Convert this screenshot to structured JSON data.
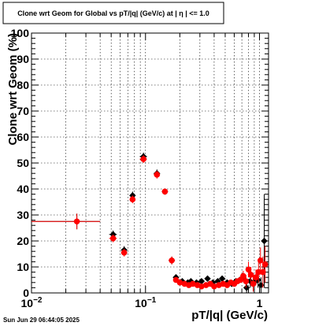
{
  "title": "Clone wrt Geom for Global vs pT/|q| (GeV/c) at |  η  | <= 1.0",
  "timestamp": "Sun Jun 29 06:44:05 2025",
  "chart_data": {
    "type": "scatter",
    "xlabel": "pT/|q| (GeV/c)",
    "ylabel": "Clone wrt Geom (%)",
    "xscale": "log",
    "xlim": [
      0.01,
      1.2
    ],
    "ylim": [
      0,
      100
    ],
    "grid": true,
    "legend": "none",
    "x_ticks": [
      {
        "value": 0.01,
        "base": "10",
        "exp": "−2"
      },
      {
        "value": 0.1,
        "base": "10",
        "exp": "−1"
      },
      {
        "value": 1,
        "base": "1",
        "exp": ""
      }
    ],
    "y_ticks": [
      0,
      10,
      20,
      30,
      40,
      50,
      60,
      70,
      80,
      90,
      100
    ],
    "colors": {
      "series_a": "#000000",
      "series_b": "#ff0000"
    },
    "series": [
      {
        "marker": "diamond",
        "color": "#000000",
        "points": [
          {
            "x": 0.025,
            "y": 27.5,
            "xlo": 0.01,
            "xhi": 0.04,
            "yerr": 3
          },
          {
            "x": 0.052,
            "y": 22.5,
            "xerr": 0.004,
            "yerr": 1.5
          },
          {
            "x": 0.065,
            "y": 16.5,
            "xerr": 0.004,
            "yerr": 1.5
          },
          {
            "x": 0.077,
            "y": 37.5,
            "xerr": 0.003,
            "yerr": 1.5
          },
          {
            "x": 0.096,
            "y": 52.5,
            "xerr": 0.007,
            "yerr": 1.5
          },
          {
            "x": 0.126,
            "y": 46.0,
            "xerr": 0.008,
            "yerr": 1.5
          },
          {
            "x": 0.148,
            "y": 39.0,
            "xerr": 0.004,
            "yerr": 1.0
          },
          {
            "x": 0.17,
            "y": 12.5,
            "xerr": 0.005,
            "yerr": 1.5
          },
          {
            "x": 0.185,
            "y": 6.0
          },
          {
            "x": 0.21,
            "y": 4.5
          },
          {
            "x": 0.235,
            "y": 4.0
          },
          {
            "x": 0.25,
            "y": 4.5
          },
          {
            "x": 0.28,
            "y": 4.0
          },
          {
            "x": 0.31,
            "y": 4.5
          },
          {
            "x": 0.35,
            "y": 5.5
          },
          {
            "x": 0.39,
            "y": 4.0
          },
          {
            "x": 0.43,
            "y": 4.5
          },
          {
            "x": 0.47,
            "y": 5.5
          },
          {
            "x": 0.52,
            "y": 4.0
          },
          {
            "x": 0.57,
            "y": 3.5
          },
          {
            "x": 0.62,
            "y": 4.5
          },
          {
            "x": 0.67,
            "y": 5.0
          },
          {
            "x": 0.72,
            "y": 6.0
          },
          {
            "x": 0.77,
            "y": 2.0,
            "yerr": 2.5
          },
          {
            "x": 0.83,
            "y": 4.5,
            "yerr": 2.5
          },
          {
            "x": 0.9,
            "y": 4.0,
            "yerr": 3
          },
          {
            "x": 0.97,
            "y": 5.0,
            "yerr": 3
          },
          {
            "x": 1.03,
            "y": 3.0,
            "yerr": 3
          },
          {
            "x": 1.1,
            "y": 20.0,
            "yerr": 18
          }
        ]
      },
      {
        "marker": "circle",
        "color": "#ff0000",
        "points": [
          {
            "x": 0.025,
            "y": 27.5,
            "xlo": 0.01,
            "xhi": 0.04,
            "yerr": 3
          },
          {
            "x": 0.052,
            "y": 21.0,
            "xerr": 0.004,
            "yerr": 1.5
          },
          {
            "x": 0.065,
            "y": 15.5,
            "xerr": 0.004,
            "yerr": 1.5
          },
          {
            "x": 0.077,
            "y": 36.0,
            "xerr": 0.003,
            "yerr": 1.5
          },
          {
            "x": 0.096,
            "y": 51.5,
            "xerr": 0.007,
            "yerr": 1.5
          },
          {
            "x": 0.126,
            "y": 45.5,
            "xerr": 0.008,
            "yerr": 1.5
          },
          {
            "x": 0.148,
            "y": 39.0,
            "xerr": 0.004,
            "yerr": 1.0
          },
          {
            "x": 0.17,
            "y": 12.5,
            "xerr": 0.005,
            "yerr": 1.5
          },
          {
            "x": 0.185,
            "y": 5.0
          },
          {
            "x": 0.2,
            "y": 4.0
          },
          {
            "x": 0.22,
            "y": 3.5
          },
          {
            "x": 0.24,
            "y": 3.0
          },
          {
            "x": 0.26,
            "y": 3.5
          },
          {
            "x": 0.285,
            "y": 3.0
          },
          {
            "x": 0.31,
            "y": 2.5
          },
          {
            "x": 0.34,
            "y": 3.0
          },
          {
            "x": 0.37,
            "y": 3.5
          },
          {
            "x": 0.4,
            "y": 2.5
          },
          {
            "x": 0.44,
            "y": 3.0
          },
          {
            "x": 0.48,
            "y": 3.5
          },
          {
            "x": 0.52,
            "y": 3.0
          },
          {
            "x": 0.56,
            "y": 4.0
          },
          {
            "x": 0.6,
            "y": 3.5
          },
          {
            "x": 0.64,
            "y": 4.5
          },
          {
            "x": 0.68,
            "y": 5.0
          },
          {
            "x": 0.72,
            "y": 6.5,
            "yerr": 2
          },
          {
            "x": 0.76,
            "y": 4.5,
            "yerr": 2.5
          },
          {
            "x": 0.8,
            "y": 9.0,
            "yerr": 3
          },
          {
            "x": 0.84,
            "y": 7.0,
            "yerr": 3
          },
          {
            "x": 0.88,
            "y": 3.5,
            "yerr": 3
          },
          {
            "x": 0.93,
            "y": 6.0,
            "yerr": 3
          },
          {
            "x": 0.98,
            "y": 8.0,
            "yerr": 4
          },
          {
            "x": 1.02,
            "y": 12.5,
            "yerr": 5
          },
          {
            "x": 1.07,
            "y": 8.0,
            "yerr": 6
          },
          {
            "x": 1.12,
            "y": 11.0,
            "yerr": 7
          }
        ]
      }
    ]
  }
}
